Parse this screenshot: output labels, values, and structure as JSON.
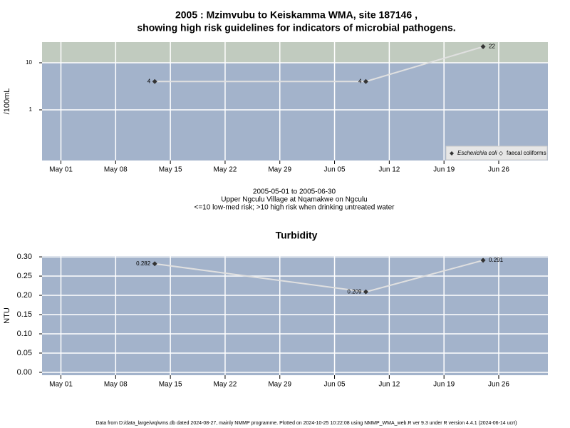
{
  "chart_data": [
    {
      "type": "line",
      "log_y": true,
      "title": [
        "2005 : Mzimvubu to Keiskamma WMA, site 187146 ,",
        "showing high risk guidelines for indicators of microbial pathogens."
      ],
      "ylabel": "/100mL",
      "x": [
        "2005-05-13",
        "2005-06-09",
        "2005-06-24"
      ],
      "series": [
        {
          "name": "Escherichia coli",
          "color": "#333333",
          "values": [
            4,
            4,
            22
          ],
          "value_labels": [
            "4",
            "4",
            "22"
          ]
        },
        {
          "name": "faecal coliforms",
          "color": "#333333",
          "values": [
            null,
            null,
            null
          ]
        }
      ],
      "high_risk_threshold": 10,
      "xlim": [
        "2005-04-28T14:00",
        "2005-07-02T07:00"
      ],
      "xticks": [
        {
          "value": "2005-05-01",
          "label": "May 01"
        },
        {
          "value": "2005-05-08",
          "label": "May 08"
        },
        {
          "value": "2005-05-15",
          "label": "May 15"
        },
        {
          "value": "2005-05-22",
          "label": "May 22"
        },
        {
          "value": "2005-05-29",
          "label": "May 29"
        },
        {
          "value": "2005-06-05",
          "label": "Jun 05"
        },
        {
          "value": "2005-06-12",
          "label": "Jun 12"
        },
        {
          "value": "2005-06-19",
          "label": "Jun 19"
        },
        {
          "value": "2005-06-26",
          "label": "Jun 26"
        }
      ],
      "ylim": [
        0.084,
        27.5
      ],
      "yticks": [
        1,
        10
      ],
      "grid": true,
      "legend": "bottom-right",
      "notes": [
        "2005-05-01 to 2005-06-30",
        "Upper Ngculu Village at Nqamakwe on Ngculu",
        "<=10 low-med risk; >10 high risk when drinking untreated water"
      ]
    },
    {
      "type": "line",
      "log_y": false,
      "title": [
        "Turbidity"
      ],
      "ylabel": "NTU",
      "x": [
        "2005-05-13",
        "2005-06-09",
        "2005-06-24"
      ],
      "series": [
        {
          "name": "Turbidity",
          "color": "#333333",
          "values": [
            0.282,
            0.209,
            0.291
          ]
        }
      ],
      "xlim": [
        "2005-04-28T14:00",
        "2005-07-02T07:00"
      ],
      "xticks": [
        {
          "value": "2005-05-01",
          "label": "May 01"
        },
        {
          "value": "2005-05-08",
          "label": "May 08"
        },
        {
          "value": "2005-05-15",
          "label": "May 15"
        },
        {
          "value": "2005-05-22",
          "label": "May 22"
        },
        {
          "value": "2005-05-29",
          "label": "May 29"
        },
        {
          "value": "2005-06-05",
          "label": "Jun 05"
        },
        {
          "value": "2005-06-12",
          "label": "Jun 12"
        },
        {
          "value": "2005-06-19",
          "label": "Jun 19"
        },
        {
          "value": "2005-06-26",
          "label": "Jun 26"
        }
      ],
      "ylim": [
        -0.0075,
        0.302
      ],
      "yticks": [
        {
          "value": 0,
          "label": "0.00"
        },
        0.05,
        {
          "value": 0.1,
          "label": "0.10"
        },
        0.15,
        {
          "value": 0.2,
          "label": "0.20"
        },
        0.25,
        {
          "value": 0.3,
          "label": "0.30"
        }
      ],
      "grid": true
    }
  ],
  "footer": "Data from D:/data_large/wq/wms.db dated 2024-08-27, mainly NMMP programme. Plotted on 2024-10-25 10:22:08 using NMMP_WMA_web.R ver 9.3 under R version 4.4.1 (2024-06-14 ucrt)"
}
